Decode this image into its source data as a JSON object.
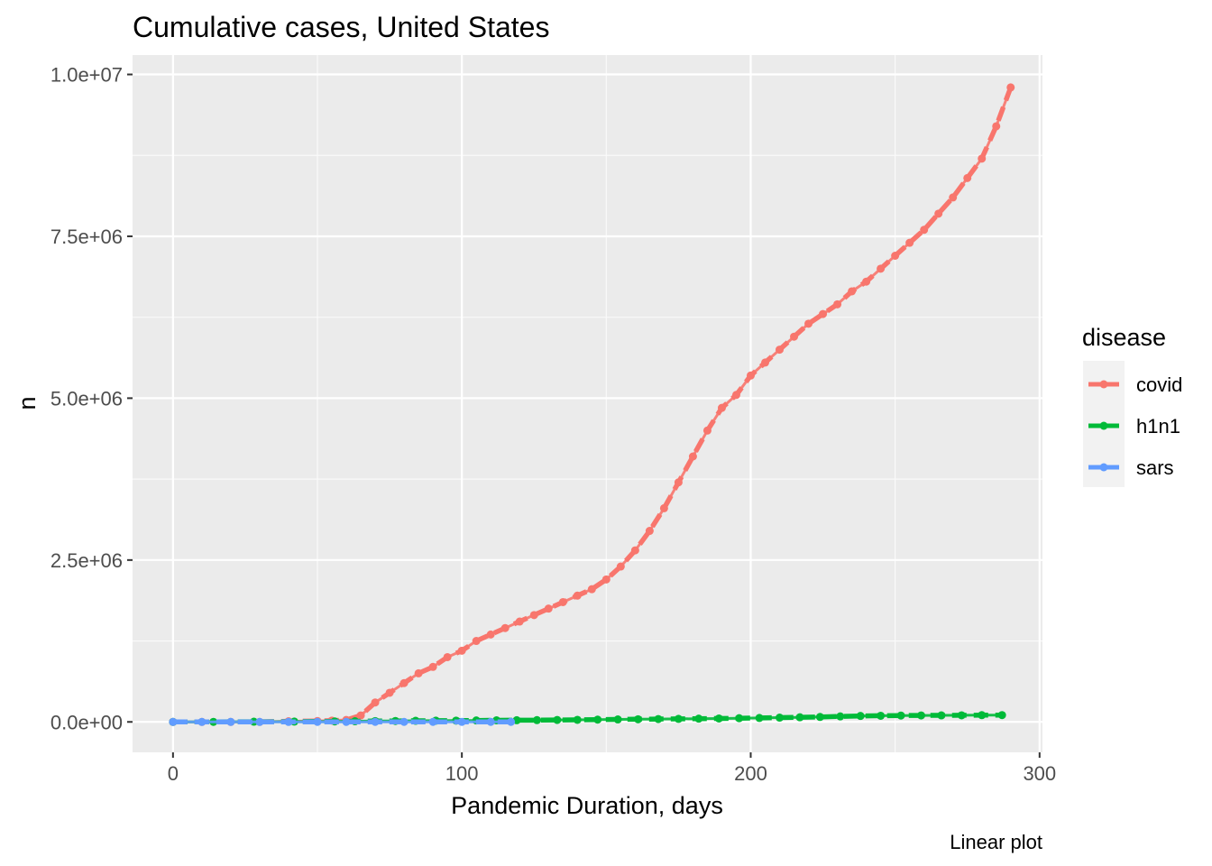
{
  "chart_data": {
    "type": "line",
    "title": "Cumulative cases, United States",
    "xlabel": "Pandemic Duration, days",
    "ylabel": "n",
    "caption": "Linear plot",
    "xlim": [
      -14,
      301
    ],
    "ylim": [
      -470000,
      10300000
    ],
    "x_ticks": [
      0,
      100,
      200,
      300
    ],
    "x_tick_labels": [
      "0",
      "100",
      "200",
      "300"
    ],
    "y_ticks": [
      0,
      2500000,
      5000000,
      7500000,
      10000000
    ],
    "y_tick_labels": [
      "0.0e+00",
      "2.5e+06",
      "5.0e+06",
      "7.5e+06",
      "1.0e+07"
    ],
    "grid": true,
    "legend": {
      "title": "disease",
      "position": "right"
    },
    "series": [
      {
        "name": "covid",
        "color": "#F8766D",
        "x": [
          0,
          10,
          20,
          30,
          40,
          50,
          55,
          60,
          65,
          70,
          75,
          80,
          85,
          90,
          95,
          100,
          105,
          110,
          115,
          120,
          125,
          130,
          135,
          140,
          145,
          150,
          155,
          160,
          165,
          170,
          175,
          180,
          185,
          190,
          195,
          200,
          205,
          210,
          215,
          220,
          225,
          230,
          235,
          240,
          245,
          250,
          255,
          260,
          265,
          270,
          275,
          280,
          285,
          290
        ],
        "values": [
          0,
          0,
          0,
          0,
          10000,
          15000,
          20000,
          30000,
          100000,
          300000,
          450000,
          600000,
          750000,
          850000,
          1000000,
          1100000,
          1250000,
          1350000,
          1450000,
          1550000,
          1650000,
          1750000,
          1850000,
          1950000,
          2050000,
          2200000,
          2400000,
          2650000,
          2950000,
          3300000,
          3700000,
          4100000,
          4500000,
          4850000,
          5050000,
          5350000,
          5550000,
          5750000,
          5950000,
          6150000,
          6300000,
          6450000,
          6650000,
          6800000,
          7000000,
          7200000,
          7400000,
          7600000,
          7850000,
          8100000,
          8400000,
          8700000,
          9200000,
          9800000
        ]
      },
      {
        "name": "h1n1",
        "color": "#00BA38",
        "x": [
          0,
          14,
          28,
          42,
          56,
          63,
          70,
          77,
          84,
          91,
          98,
          105,
          112,
          119,
          126,
          133,
          140,
          147,
          154,
          161,
          168,
          175,
          182,
          189,
          196,
          203,
          210,
          217,
          224,
          231,
          238,
          245,
          252,
          259,
          266,
          273,
          280,
          287
        ],
        "values": [
          0,
          1000,
          3000,
          5000,
          8000,
          10000,
          13000,
          15000,
          17000,
          19000,
          20000,
          22000,
          24000,
          26000,
          28000,
          30000,
          32000,
          35000,
          38000,
          41000,
          44000,
          47000,
          50000,
          53000,
          57000,
          61000,
          66000,
          71000,
          76000,
          85000,
          92000,
          95000,
          98000,
          100000,
          101000,
          102000,
          104000,
          105000
        ]
      },
      {
        "name": "sars",
        "color": "#619CFF",
        "x": [
          0,
          10,
          20,
          30,
          40,
          50,
          60,
          70,
          80,
          90,
          100,
          110,
          117
        ],
        "values": [
          0,
          30,
          60,
          100,
          140,
          170,
          190,
          200,
          210,
          215,
          220,
          225,
          227
        ]
      }
    ]
  }
}
